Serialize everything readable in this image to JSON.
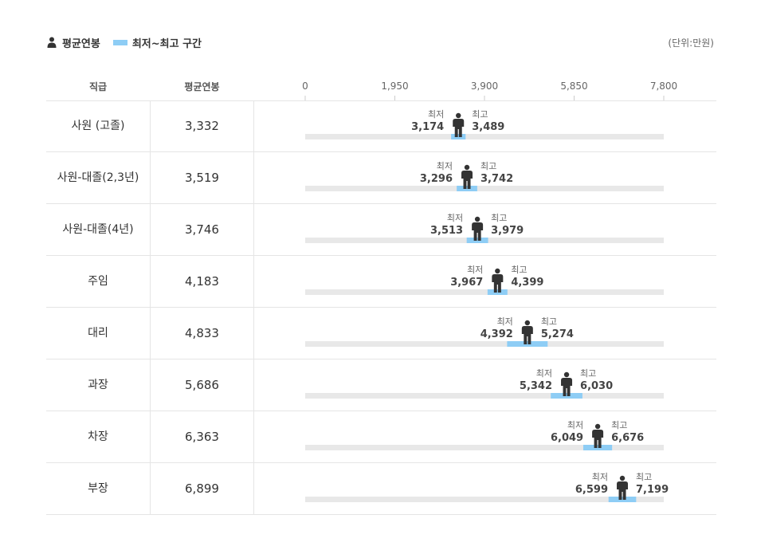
{
  "legend": {
    "avg_label": "평균연봉",
    "range_label": "최저~최고 구간"
  },
  "unit_label": "(단위:만원)",
  "header": {
    "grade_col": "직급",
    "avg_col": "평균연봉"
  },
  "labels": {
    "min": "최저",
    "max": "최고"
  },
  "colors": {
    "track": "#e8e8e8",
    "range": "#8ecdf5",
    "person": "#333333"
  },
  "chart_data": {
    "type": "range-dot",
    "x_ticks": [
      "0",
      "1,950",
      "3,900",
      "5,850",
      "7,800"
    ],
    "xlim": [
      0,
      7800
    ],
    "rows": [
      {
        "grade": "사원 (고졸)",
        "avg": 3332,
        "avg_text": "3,332",
        "min": 3174,
        "min_text": "3,174",
        "max": 3489,
        "max_text": "3,489"
      },
      {
        "grade": "사원-대졸(2,3년)",
        "avg": 3519,
        "avg_text": "3,519",
        "min": 3296,
        "min_text": "3,296",
        "max": 3742,
        "max_text": "3,742"
      },
      {
        "grade": "사원-대졸(4년)",
        "avg": 3746,
        "avg_text": "3,746",
        "min": 3513,
        "min_text": "3,513",
        "max": 3979,
        "max_text": "3,979"
      },
      {
        "grade": "주임",
        "avg": 4183,
        "avg_text": "4,183",
        "min": 3967,
        "min_text": "3,967",
        "max": 4399,
        "max_text": "4,399"
      },
      {
        "grade": "대리",
        "avg": 4833,
        "avg_text": "4,833",
        "min": 4392,
        "min_text": "4,392",
        "max": 5274,
        "max_text": "5,274"
      },
      {
        "grade": "과장",
        "avg": 5686,
        "avg_text": "5,686",
        "min": 5342,
        "min_text": "5,342",
        "max": 6030,
        "max_text": "6,030"
      },
      {
        "grade": "차장",
        "avg": 6363,
        "avg_text": "6,363",
        "min": 6049,
        "min_text": "6,049",
        "max": 6676,
        "max_text": "6,676"
      },
      {
        "grade": "부장",
        "avg": 6899,
        "avg_text": "6,899",
        "min": 6599,
        "min_text": "6,599",
        "max": 7199,
        "max_text": "7,199"
      }
    ]
  }
}
